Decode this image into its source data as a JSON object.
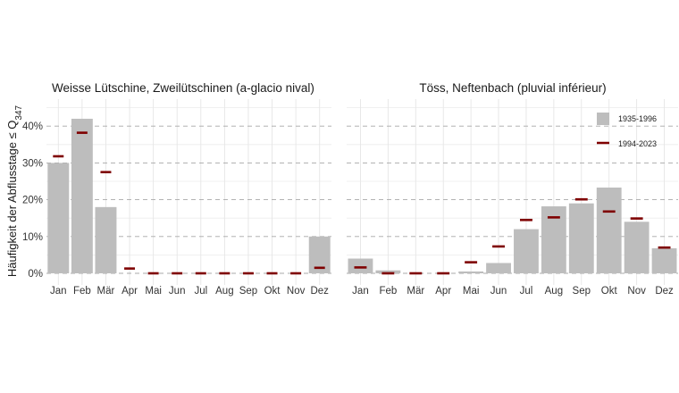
{
  "chart_data": [
    {
      "type": "bar",
      "title": "Weisse Lütschine, Zweilütschinen (a-glacio nival)",
      "categories": [
        "Jan",
        "Feb",
        "Mär",
        "Apr",
        "Mai",
        "Jun",
        "Jul",
        "Aug",
        "Sep",
        "Okt",
        "Nov",
        "Dez"
      ],
      "ylabel": "Häufigkeit der Abflusstage ≤ Q347",
      "ylim": [
        0,
        47
      ],
      "yticks": [
        "0%",
        "10%",
        "20%",
        "30%",
        "40%"
      ],
      "grid": true,
      "series": [
        {
          "name": "1935-1996",
          "kind": "bar",
          "color": "#bdbdbd",
          "values": [
            30,
            42,
            18,
            0,
            0,
            0,
            0,
            0,
            0,
            0,
            0,
            10
          ]
        },
        {
          "name": "1994-2023",
          "kind": "marker",
          "color": "#7f0000",
          "values": [
            31.8,
            38.2,
            27.5,
            1.3,
            0,
            0,
            0,
            0,
            0,
            0,
            0,
            1.5
          ]
        }
      ]
    },
    {
      "type": "bar",
      "title": "Töss, Neftenbach (pluvial inférieur)",
      "categories": [
        "Jan",
        "Feb",
        "Mär",
        "Apr",
        "Mai",
        "Jun",
        "Jul",
        "Aug",
        "Sep",
        "Okt",
        "Nov",
        "Dez"
      ],
      "ylim": [
        0,
        47
      ],
      "grid": true,
      "legend": "top-right",
      "series": [
        {
          "name": "1935-1996",
          "kind": "bar",
          "color": "#bdbdbd",
          "values": [
            4,
            0.8,
            0,
            0,
            0.5,
            2.8,
            12,
            18.2,
            19,
            23.3,
            14,
            6.8
          ]
        },
        {
          "name": "1994-2023",
          "kind": "marker",
          "color": "#7f0000",
          "values": [
            1.6,
            0,
            0,
            0,
            3,
            7.3,
            14.5,
            15.2,
            20.1,
            16.8,
            14.9,
            7
          ]
        }
      ]
    }
  ]
}
